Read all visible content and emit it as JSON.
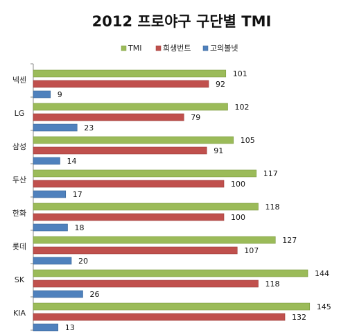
{
  "chart_data": {
    "type": "bar",
    "orientation": "horizontal",
    "title": "2012 프로야구 구단별 TMI",
    "categories": [
      "넥센",
      "LG",
      "삼성",
      "두산",
      "한화",
      "롯데",
      "SK",
      "KIA"
    ],
    "series": [
      {
        "name": "TMI",
        "color": "#9BBB59",
        "stroke": "#7A9A3C",
        "values": [
          101,
          102,
          105,
          117,
          118,
          127,
          144,
          145
        ]
      },
      {
        "name": "희생번트",
        "color": "#C0504D",
        "stroke": "#9A3A37",
        "values": [
          92,
          79,
          91,
          100,
          100,
          107,
          118,
          132
        ]
      },
      {
        "name": "고의볼넷",
        "color": "#4F81BD",
        "stroke": "#3A6494",
        "values": [
          9,
          23,
          14,
          17,
          18,
          20,
          26,
          13
        ]
      }
    ],
    "xlim": [
      0,
      160
    ],
    "legend": "top",
    "grid": false
  }
}
